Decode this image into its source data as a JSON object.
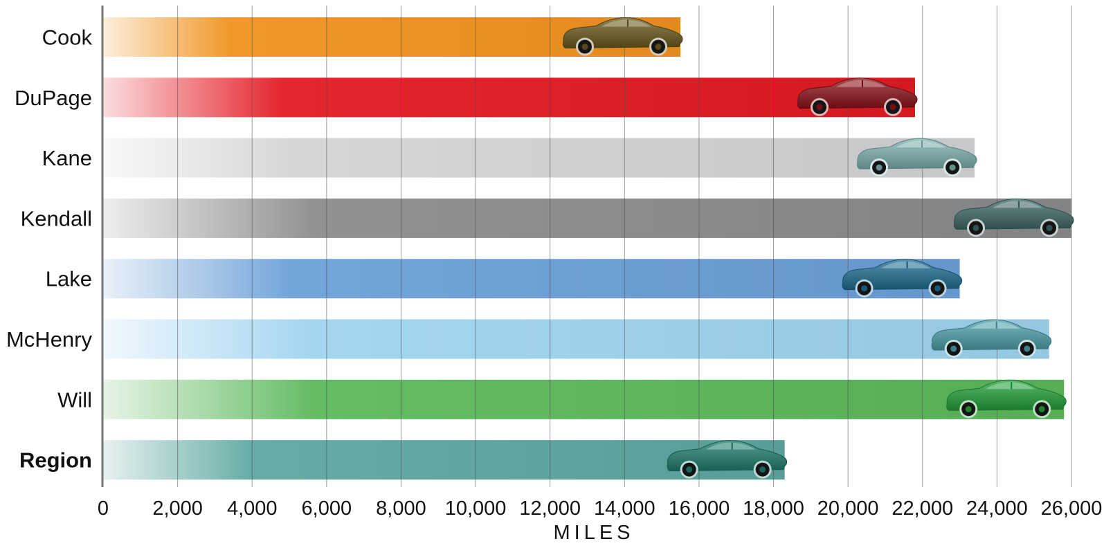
{
  "chart_data": {
    "type": "bar",
    "orientation": "horizontal",
    "categories": [
      "Cook",
      "DuPage",
      "Kane",
      "Kendall",
      "Lake",
      "McHenry",
      "Will",
      "Region"
    ],
    "values": [
      15500,
      21800,
      23400,
      26000,
      23000,
      25400,
      25800,
      18300
    ],
    "bold_categories": [
      "Region"
    ],
    "xlabel": "MILES",
    "xlim": [
      0,
      26000
    ],
    "xticks": [
      0,
      2000,
      4000,
      6000,
      8000,
      10000,
      12000,
      14000,
      16000,
      18000,
      20000,
      22000,
      24000,
      26000
    ],
    "xtick_labels": [
      "0",
      "2,000",
      "4,000",
      "6,000",
      "8,000",
      "10,000",
      "12,000",
      "14,000",
      "16,000",
      "18,000",
      "20,000",
      "22,000",
      "24,000",
      "26,000"
    ],
    "grid": "vertical",
    "bar_marker": "car-icon",
    "bar_colors": [
      "#f0931f",
      "#e31b23",
      "#d3d4d6",
      "#8a8b8d",
      "#6ca0d8",
      "#9fd3f0",
      "#5cb85c",
      "#5ea8a0"
    ],
    "car_colors": [
      "#6b5a1e",
      "#8e1219",
      "#7fb3b1",
      "#3f6868",
      "#1f6e94",
      "#4fa1ac",
      "#23a23a",
      "#1e7e6e"
    ]
  }
}
